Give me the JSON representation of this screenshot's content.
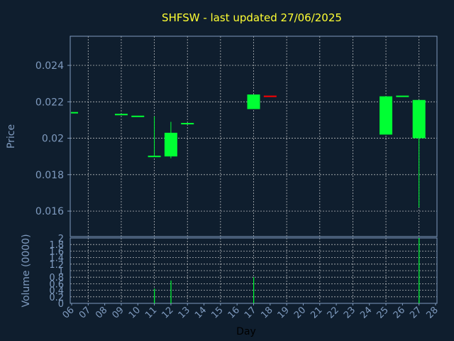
{
  "chart_data": {
    "type": "candlestick",
    "title": "SHFSW - last updated 27/06/2025",
    "price_axis": {
      "label": "Price",
      "ylim": [
        0.0146,
        0.0256
      ],
      "ticks": [
        0.016,
        0.018,
        0.02,
        0.022,
        0.024
      ],
      "tick_labels": [
        "0.016",
        "0.018",
        "0.02",
        "0.022",
        "0.024"
      ]
    },
    "volume_axis": {
      "label": "Volume (0000)",
      "ylim": [
        0,
        2
      ],
      "ticks": [
        0,
        0.2,
        0.4,
        0.6,
        0.8,
        1,
        1.2,
        1.4,
        1.6,
        1.8,
        2
      ],
      "tick_labels": [
        "0",
        "0.2",
        "0.4",
        "0.6",
        "0.8",
        "1",
        "1.2",
        "1.4",
        "1.6",
        "1.8",
        "2"
      ]
    },
    "x_axis": {
      "label": "Day",
      "days": [
        6,
        7,
        8,
        9,
        10,
        11,
        12,
        13,
        14,
        15,
        16,
        17,
        18,
        19,
        20,
        21,
        22,
        23,
        24,
        25,
        26,
        27,
        28
      ],
      "tick_labels": [
        "06",
        "07",
        "08",
        "09",
        "10",
        "11",
        "12",
        "13",
        "14",
        "15",
        "16",
        "17",
        "18",
        "19",
        "20",
        "21",
        "22",
        "23",
        "24",
        "25",
        "26",
        "27",
        "28"
      ]
    },
    "grid": true,
    "candles": [
      {
        "day": 6,
        "open": 0.0214,
        "close": 0.0214,
        "high": 0.0214,
        "low": 0.0214,
        "color": "#00ff33"
      },
      {
        "day": 9,
        "open": 0.0213,
        "close": 0.0213,
        "high": 0.0213,
        "low": 0.0213,
        "color": "#00ff33"
      },
      {
        "day": 10,
        "open": 0.0212,
        "close": 0.0212,
        "high": 0.0212,
        "low": 0.0212,
        "color": "#00ff33"
      },
      {
        "day": 11,
        "open": 0.019,
        "close": 0.019,
        "high": 0.0212,
        "low": 0.019,
        "color": "#00ff33"
      },
      {
        "day": 12,
        "open": 0.019,
        "close": 0.0203,
        "high": 0.0209,
        "low": 0.0189,
        "color": "#00ff33"
      },
      {
        "day": 13,
        "open": 0.0208,
        "close": 0.0208,
        "high": 0.0208,
        "low": 0.0208,
        "color": "#00ff33"
      },
      {
        "day": 17,
        "open": 0.0216,
        "close": 0.0224,
        "high": 0.0224,
        "low": 0.0216,
        "color": "#00ff33"
      },
      {
        "day": 18,
        "open": 0.0223,
        "close": 0.0223,
        "high": 0.0223,
        "low": 0.0223,
        "color": "#ff0000"
      },
      {
        "day": 25,
        "open": 0.0202,
        "close": 0.0223,
        "high": 0.0223,
        "low": 0.0202,
        "color": "#00ff33"
      },
      {
        "day": 26,
        "open": 0.0223,
        "close": 0.0223,
        "high": 0.0223,
        "low": 0.0223,
        "color": "#00ff33"
      },
      {
        "day": 27,
        "open": 0.02,
        "close": 0.0221,
        "high": 0.0221,
        "low": 0.0162,
        "color": "#00ff33"
      }
    ],
    "volume": [
      {
        "day": 11,
        "value": 0.45
      },
      {
        "day": 12,
        "value": 0.7
      },
      {
        "day": 17,
        "value": 0.8
      },
      {
        "day": 27,
        "value": 2.0
      }
    ],
    "colors": {
      "background": "#0f1e2e",
      "frame": "#7f9bbf",
      "grid": "#dddddd",
      "title": "#ffff33",
      "up": "#00ff33",
      "down": "#ff0000",
      "volume": "#00ff33"
    }
  }
}
